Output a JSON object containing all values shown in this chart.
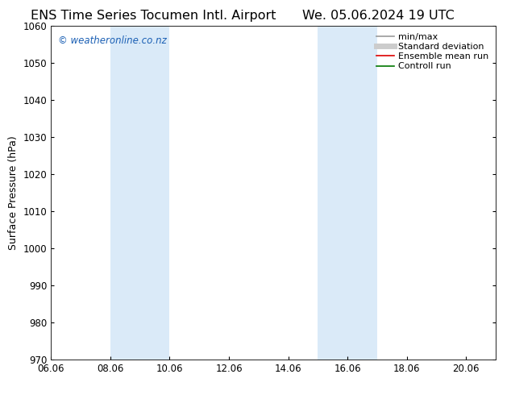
{
  "title_left": "ENS Time Series Tocumen Intl. Airport",
  "title_right": "We. 05.06.2024 19 UTC",
  "ylabel": "Surface Pressure (hPa)",
  "xlabel": "",
  "ylim": [
    970,
    1060
  ],
  "yticks": [
    970,
    980,
    990,
    1000,
    1010,
    1020,
    1030,
    1040,
    1050,
    1060
  ],
  "xlim_start": 6.06,
  "xlim_end": 21.06,
  "xticks": [
    6.06,
    8.06,
    10.06,
    12.06,
    14.06,
    16.06,
    18.06,
    20.06
  ],
  "xtick_labels": [
    "06.06",
    "08.06",
    "10.06",
    "12.06",
    "14.06",
    "16.06",
    "18.06",
    "20.06"
  ],
  "shaded_regions": [
    {
      "x_start": 8.06,
      "x_end": 10.06
    },
    {
      "x_start": 15.06,
      "x_end": 17.06
    }
  ],
  "shade_color": "#daeaf8",
  "bg_color": "#ffffff",
  "watermark_text": "© weatheronline.co.nz",
  "watermark_color": "#1a5fb4",
  "legend_entries": [
    {
      "label": "min/max",
      "color": "#999999",
      "lw": 1.2,
      "style": "solid"
    },
    {
      "label": "Standard deviation",
      "color": "#cccccc",
      "lw": 5,
      "style": "solid"
    },
    {
      "label": "Ensemble mean run",
      "color": "#dd0000",
      "lw": 1.2,
      "style": "solid"
    },
    {
      "label": "Controll run",
      "color": "#007700",
      "lw": 1.2,
      "style": "solid"
    }
  ],
  "title_fontsize": 11.5,
  "tick_fontsize": 8.5,
  "ylabel_fontsize": 9,
  "legend_fontsize": 8,
  "watermark_fontsize": 8.5
}
